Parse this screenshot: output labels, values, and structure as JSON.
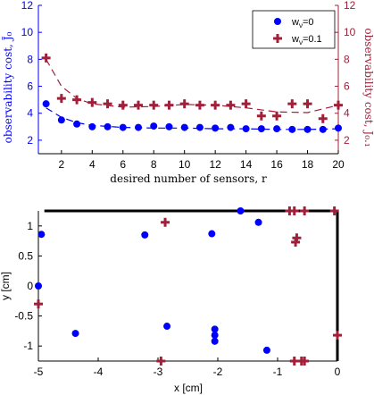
{
  "chart_data": [
    {
      "type": "scatter",
      "xlabel": "desired number of sensors, r",
      "ylabel_left": "observability cost, J̃₀",
      "ylabel_right": "observability cost, J̃₀.₁",
      "xlim": [
        0.5,
        20
      ],
      "ylim_left": [
        1,
        12
      ],
      "ylim_right": [
        1,
        12
      ],
      "xticks": [
        2,
        4,
        6,
        8,
        10,
        12,
        14,
        16,
        18,
        20
      ],
      "yticks_left": [
        2,
        4,
        6,
        8,
        10,
        12
      ],
      "yticks_right": [
        2,
        4,
        6,
        8,
        10,
        12
      ],
      "left_color": "#0000ff",
      "right_color": "#a0203a",
      "legend": {
        "placement": "top-right",
        "entries": [
          "w_ν=0",
          "w_ν=0.1"
        ]
      },
      "series": [
        {
          "name": "w_ν=0",
          "marker": "circle",
          "color": "#0000ff",
          "x": [
            1,
            2,
            3,
            4,
            5,
            6,
            7,
            8,
            9,
            10,
            11,
            12,
            13,
            14,
            15,
            16,
            17,
            18,
            19,
            20
          ],
          "y": [
            4.7,
            3.5,
            3.2,
            3.0,
            3.0,
            2.95,
            2.95,
            3.05,
            3.0,
            2.95,
            2.95,
            2.9,
            2.95,
            2.85,
            2.85,
            2.85,
            2.8,
            2.8,
            2.8,
            2.9
          ]
        },
        {
          "name": "w_ν=0.1",
          "marker": "plus",
          "color": "#a0203a",
          "x": [
            1,
            2,
            3,
            4,
            5,
            6,
            7,
            8,
            9,
            10,
            11,
            12,
            13,
            14,
            15,
            16,
            17,
            18,
            19,
            20
          ],
          "y": [
            8.1,
            5.1,
            5.0,
            4.8,
            4.7,
            4.6,
            4.6,
            4.6,
            4.6,
            4.7,
            4.6,
            4.6,
            4.6,
            4.7,
            3.8,
            3.8,
            4.7,
            4.7,
            3.6,
            4.6
          ]
        }
      ],
      "fits": [
        {
          "series": "w_ν=0",
          "style": "dashed",
          "color": "#0000ff",
          "x": [
            1,
            2,
            3,
            4,
            6,
            8,
            10,
            12,
            14,
            16,
            18,
            20
          ],
          "y": [
            4.4,
            3.7,
            3.3,
            3.1,
            2.95,
            2.9,
            2.9,
            2.85,
            2.85,
            2.8,
            2.8,
            2.85
          ]
        },
        {
          "series": "w_ν=0.1",
          "style": "dashed",
          "color": "#a0203a",
          "x": [
            1,
            2,
            3,
            4,
            6,
            8,
            10,
            12,
            14,
            16,
            18,
            20
          ],
          "y": [
            8.0,
            6.0,
            5.1,
            4.7,
            4.45,
            4.5,
            4.65,
            4.6,
            4.4,
            4.1,
            4.05,
            4.6
          ]
        }
      ]
    },
    {
      "type": "scatter",
      "xlabel": "x [cm]",
      "ylabel": "y [cm]",
      "xlim": [
        -5,
        0
      ],
      "ylim": [
        -1.25,
        1.25
      ],
      "xticks": [
        -5,
        -4,
        -3,
        -2,
        -1,
        0
      ],
      "yticks": [
        -1,
        -0.5,
        0,
        0.5,
        1
      ],
      "series": [
        {
          "name": "w_ν=0",
          "marker": "circle",
          "color": "#0000ff",
          "x": [
            -5.0,
            -4.95,
            -4.38,
            -3.22,
            -2.85,
            -2.1,
            -2.05,
            -2.05,
            -2.05,
            -1.62,
            -1.32,
            -1.18
          ],
          "y": [
            0.0,
            0.86,
            -0.79,
            0.85,
            -0.67,
            0.87,
            -0.72,
            -0.82,
            -0.92,
            1.25,
            1.06,
            -1.07
          ]
        },
        {
          "name": "w_ν=0.1",
          "marker": "plus",
          "color": "#a0203a",
          "x": [
            -5.0,
            -2.88,
            -2.95,
            -0.8,
            -0.72,
            -0.68,
            -0.7,
            -0.72,
            -0.55,
            -0.6,
            -0.55,
            -0.05,
            0.0
          ],
          "y": [
            -0.3,
            1.06,
            -1.25,
            1.25,
            1.25,
            0.8,
            0.73,
            -1.25,
            1.25,
            -1.25,
            -1.25,
            1.25,
            -0.82
          ]
        }
      ]
    }
  ]
}
